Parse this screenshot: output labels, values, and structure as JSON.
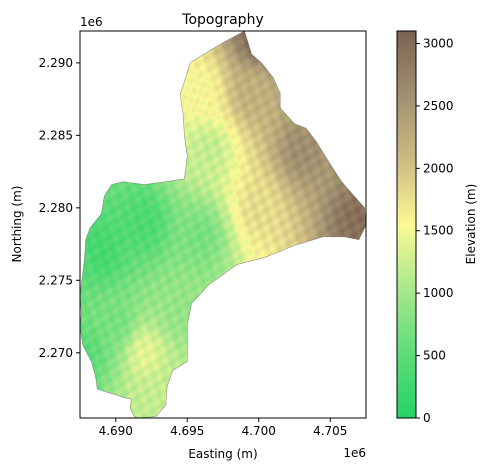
{
  "chart_data": {
    "type": "heatmap",
    "title": "Topography",
    "xlabel": "Easting (m)",
    "ylabel": "Northing (m)",
    "x_offset_label": "1e6",
    "y_offset_label": "1e6",
    "xlim": [
      4.6875,
      4.7075
    ],
    "ylim": [
      2.2655,
      2.2922
    ],
    "x_ticks": [
      {
        "value": 4.69,
        "label": "4.690"
      },
      {
        "value": 4.695,
        "label": "4.695"
      },
      {
        "value": 4.7,
        "label": "4.700"
      },
      {
        "value": 4.705,
        "label": "4.705"
      }
    ],
    "y_ticks": [
      {
        "value": 2.27,
        "label": "2.270"
      },
      {
        "value": 2.275,
        "label": "2.275"
      },
      {
        "value": 2.28,
        "label": "2.280"
      },
      {
        "value": 2.285,
        "label": "2.285"
      },
      {
        "value": 2.29,
        "label": "2.290"
      }
    ],
    "grid": false,
    "colorbar": {
      "label": "Elevation (m)",
      "range": [
        0,
        3100
      ],
      "ticks": [
        {
          "value": 0,
          "label": "0"
        },
        {
          "value": 500,
          "label": "500"
        },
        {
          "value": 1000,
          "label": "1000"
        },
        {
          "value": 1500,
          "label": "1500"
        },
        {
          "value": 2000,
          "label": "2000"
        },
        {
          "value": 2500,
          "label": "2500"
        },
        {
          "value": 3000,
          "label": "3000"
        }
      ],
      "colors": [
        "#25d366",
        "#5fdc78",
        "#a8e88c",
        "#fcf996",
        "#cdbb82",
        "#a09070",
        "#7d6252"
      ]
    },
    "basin_outline": [
      [
        4.6916,
        2.2655
      ],
      [
        4.6928,
        2.2656
      ],
      [
        4.6935,
        2.2664
      ],
      [
        4.6936,
        2.2677
      ],
      [
        4.694,
        2.2688
      ],
      [
        4.695,
        2.2694
      ],
      [
        4.695,
        2.2719
      ],
      [
        4.6953,
        2.2734
      ],
      [
        4.6965,
        2.2747
      ],
      [
        4.6985,
        2.2761
      ],
      [
        4.7005,
        2.2766
      ],
      [
        4.7025,
        2.2774
      ],
      [
        4.7045,
        2.278
      ],
      [
        4.706,
        2.278
      ],
      [
        4.707,
        2.2778
      ],
      [
        4.7075,
        2.2788
      ],
      [
        4.7074,
        2.28
      ],
      [
        4.7065,
        2.281
      ],
      [
        4.7058,
        2.2818
      ],
      [
        4.705,
        2.283
      ],
      [
        4.704,
        2.2846
      ],
      [
        4.7033,
        2.2855
      ],
      [
        4.7025,
        2.2858
      ],
      [
        4.7015,
        2.2869
      ],
      [
        4.7015,
        2.2879
      ],
      [
        4.701,
        2.289
      ],
      [
        4.7002,
        2.29
      ],
      [
        4.6995,
        2.2906
      ],
      [
        4.699,
        2.2922
      ],
      [
        4.6975,
        2.2914
      ],
      [
        4.696,
        2.2905
      ],
      [
        4.6952,
        2.29
      ],
      [
        4.6948,
        2.2887
      ],
      [
        4.6945,
        2.2878
      ],
      [
        4.6947,
        2.2865
      ],
      [
        4.6948,
        2.285
      ],
      [
        4.695,
        2.2836
      ],
      [
        4.6948,
        2.282
      ],
      [
        4.6935,
        2.2818
      ],
      [
        4.692,
        2.2816
      ],
      [
        4.6905,
        2.2818
      ],
      [
        4.6897,
        2.2816
      ],
      [
        4.6892,
        2.2808
      ],
      [
        4.689,
        2.2796
      ],
      [
        4.6882,
        2.2786
      ],
      [
        4.6879,
        2.2778
      ],
      [
        4.6878,
        2.2763
      ],
      [
        4.6875,
        2.274
      ],
      [
        4.6876,
        2.2727
      ],
      [
        4.6875,
        2.2718
      ],
      [
        4.6877,
        2.2705
      ],
      [
        4.6883,
        2.2694
      ],
      [
        4.6886,
        2.2683
      ],
      [
        4.6887,
        2.2675
      ],
      [
        4.6893,
        2.2673
      ],
      [
        4.69,
        2.2671
      ],
      [
        4.6906,
        2.2669
      ],
      [
        4.6911,
        2.2668
      ],
      [
        4.691,
        2.2662
      ],
      [
        4.6913,
        2.2656
      ]
    ],
    "elevation_anchors": [
      {
        "x": 4.7,
        "y": 2.2918,
        "elevation": 3050
      },
      {
        "x": 4.707,
        "y": 2.279,
        "elevation": 2950
      },
      {
        "x": 4.703,
        "y": 2.284,
        "elevation": 2600
      },
      {
        "x": 4.6995,
        "y": 2.288,
        "elevation": 2200
      },
      {
        "x": 4.7,
        "y": 2.28,
        "elevation": 1800
      },
      {
        "x": 4.696,
        "y": 2.288,
        "elevation": 1550
      },
      {
        "x": 4.6965,
        "y": 2.284,
        "elevation": 1200
      },
      {
        "x": 4.696,
        "y": 2.278,
        "elevation": 700
      },
      {
        "x": 4.692,
        "y": 2.279,
        "elevation": 350
      },
      {
        "x": 4.689,
        "y": 2.277,
        "elevation": 300
      },
      {
        "x": 4.69,
        "y": 2.272,
        "elevation": 700
      },
      {
        "x": 4.692,
        "y": 2.27,
        "elevation": 1400
      },
      {
        "x": 4.6925,
        "y": 2.2665,
        "elevation": 1200
      },
      {
        "x": 4.688,
        "y": 2.27,
        "elevation": 500
      },
      {
        "x": 4.6945,
        "y": 2.273,
        "elevation": 900
      }
    ]
  }
}
